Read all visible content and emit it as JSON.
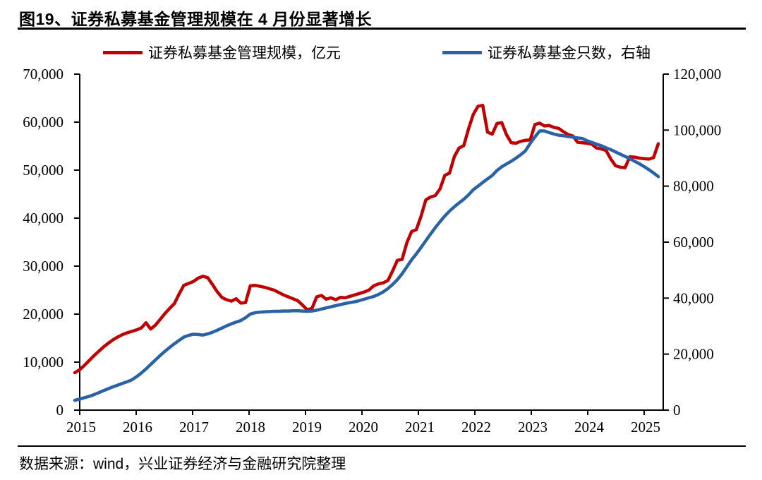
{
  "header": {
    "title": "图19、证券私募基金管理规模在 4 月份显著增长"
  },
  "footer": {
    "source": "数据来源：wind，兴业证券经济与金融研究院整理"
  },
  "legend": [
    {
      "label": "证券私募基金管理规模，亿元",
      "color": "#c00000"
    },
    {
      "label": "证券私募基金只数，右轴",
      "color": "#2962a5"
    }
  ],
  "axes": {
    "left_ticks": [
      "0",
      "10,000",
      "20,000",
      "30,000",
      "40,000",
      "50,000",
      "60,000",
      "70,000"
    ],
    "right_ticks": [
      "0",
      "20,000",
      "40,000",
      "60,000",
      "80,000",
      "100,000",
      "120,000"
    ],
    "x_ticks": [
      "2015",
      "2016",
      "2017",
      "2018",
      "2019",
      "2020",
      "2021",
      "2022",
      "2023",
      "2024",
      "2025"
    ]
  },
  "chart_data": {
    "type": "line",
    "title": "图19、证券私募基金管理规模在 4 月份显著增长",
    "x_unit": "month",
    "x_start": "2015-01",
    "x_end": "2025-04",
    "x_tick_labels": [
      "2015",
      "2016",
      "2017",
      "2018",
      "2019",
      "2020",
      "2021",
      "2022",
      "2023",
      "2024",
      "2025"
    ],
    "grid": false,
    "legend_position": "top",
    "left_axis": {
      "min": 0,
      "max": 70000,
      "tick_step": 10000
    },
    "right_axis": {
      "min": 0,
      "max": 120000,
      "tick_step": 20000
    },
    "series": [
      {
        "name": "证券私募基金管理规模，亿元",
        "axis": "left",
        "color": "#c00000",
        "values": [
          7800,
          8400,
          9300,
          10300,
          11300,
          12200,
          13100,
          13900,
          14600,
          15200,
          15700,
          16100,
          16400,
          16700,
          17100,
          18200,
          16900,
          17700,
          18900,
          20100,
          21200,
          22200,
          24200,
          26000,
          26400,
          26800,
          27500,
          27900,
          27600,
          26200,
          24700,
          23500,
          23000,
          22700,
          23200,
          22300,
          22400,
          25900,
          26000,
          25800,
          25600,
          25300,
          25000,
          24500,
          24000,
          23600,
          23200,
          22800,
          21900,
          20900,
          21200,
          23600,
          23900,
          23100,
          23400,
          23000,
          23500,
          23400,
          23700,
          24000,
          24300,
          24600,
          25000,
          25900,
          26300,
          26500,
          27000,
          29000,
          31200,
          31400,
          34900,
          37200,
          37600,
          40400,
          43800,
          44400,
          44700,
          46100,
          48900,
          49400,
          52800,
          54600,
          55100,
          58600,
          61600,
          63300,
          63500,
          57900,
          57500,
          59700,
          59900,
          57400,
          55700,
          55600,
          56000,
          56200,
          56300,
          59500,
          59800,
          59200,
          59300,
          58900,
          58700,
          58000,
          57400,
          57100,
          55800,
          55700,
          55600,
          55400,
          54600,
          54400,
          54100,
          52300,
          50900,
          50600,
          50500,
          52800,
          52700,
          52500,
          52400,
          52300,
          52600,
          55500
        ]
      },
      {
        "name": "证券私募基金只数，右轴",
        "axis": "right",
        "color": "#2962a5",
        "values": [
          3500,
          3900,
          4400,
          4900,
          5500,
          6200,
          6900,
          7600,
          8300,
          8900,
          9500,
          10100,
          10800,
          11900,
          13200,
          14700,
          16300,
          17900,
          19500,
          21000,
          22400,
          23700,
          24900,
          26100,
          26700,
          27100,
          27000,
          26800,
          27200,
          27800,
          28500,
          29300,
          30100,
          30800,
          31400,
          32000,
          33000,
          34300,
          34800,
          35000,
          35100,
          35200,
          35300,
          35300,
          35400,
          35400,
          35500,
          35500,
          35400,
          35300,
          35400,
          35700,
          36100,
          36500,
          36900,
          37300,
          37700,
          38100,
          38400,
          38700,
          39100,
          39600,
          40100,
          40600,
          41300,
          42200,
          43400,
          44900,
          46600,
          48700,
          51200,
          53700,
          55800,
          58100,
          60500,
          62900,
          65200,
          67300,
          69300,
          71100,
          72600,
          74000,
          75300,
          76900,
          78700,
          80000,
          81300,
          82600,
          83800,
          85600,
          86900,
          87900,
          88900,
          90000,
          91200,
          92600,
          95300,
          97600,
          99700,
          99700,
          99100,
          98600,
          98200,
          98000,
          97700,
          97500,
          97200,
          97000,
          96200,
          95600,
          95000,
          94400,
          93700,
          93000,
          92200,
          91400,
          90600,
          89800,
          88900,
          88000,
          87000,
          85900,
          84700,
          83400
        ]
      }
    ]
  }
}
